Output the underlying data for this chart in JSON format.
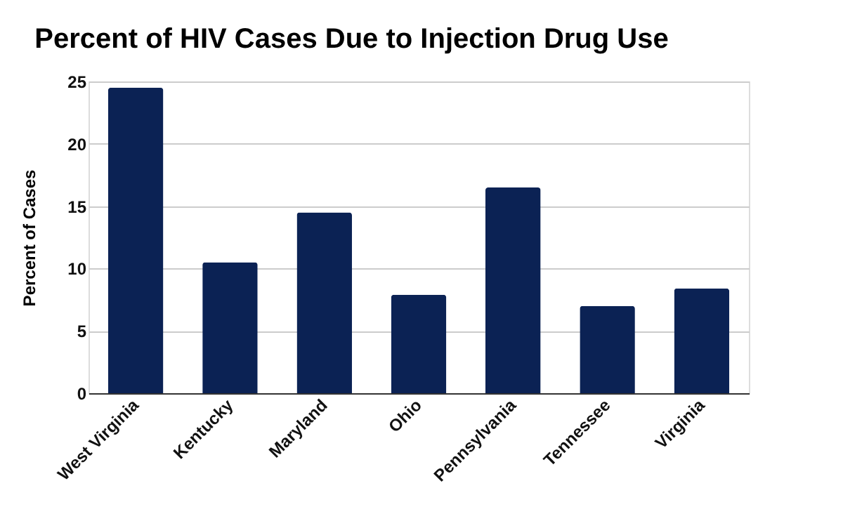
{
  "chart_data": {
    "type": "bar",
    "title": "Percent of HIV Cases Due to Injection Drug Use",
    "ylabel": "Percent of Cases",
    "categories": [
      "West Virginia",
      "Kentucky",
      "Maryland",
      "Ohio",
      "Pennsylvania",
      "Tennessee",
      "Virginia"
    ],
    "values": [
      24.5,
      10.5,
      14.5,
      7.9,
      16.5,
      7.0,
      8.4
    ],
    "color": "#0b2254",
    "ylim": [
      0,
      25
    ],
    "yticks": [
      0,
      5,
      10,
      15,
      20,
      25
    ],
    "grid": "y"
  }
}
